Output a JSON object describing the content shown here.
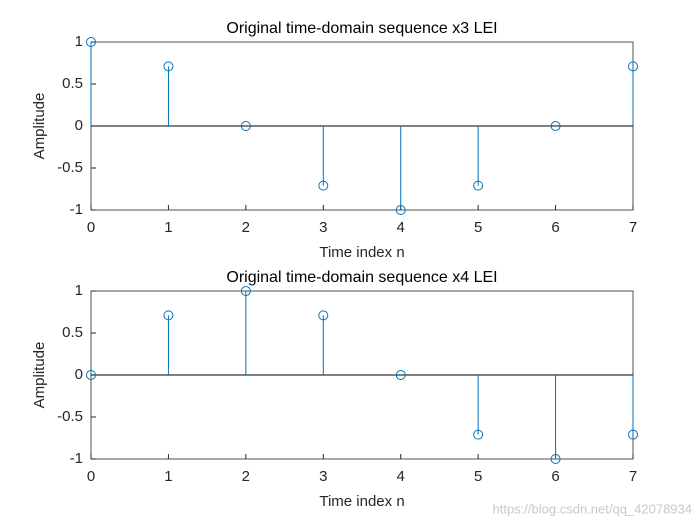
{
  "chart_data": [
    {
      "type": "stem",
      "title": "Original time-domain sequence x3 LEI",
      "xlabel": "Time index n",
      "ylabel": "Amplitude",
      "x": [
        0,
        1,
        2,
        3,
        4,
        5,
        6,
        7
      ],
      "values": [
        1,
        0.71,
        0,
        -0.71,
        -1,
        -0.71,
        0,
        0.71
      ],
      "color": "#0072bd",
      "xlim": [
        0,
        7
      ],
      "xticks": [
        0,
        1,
        2,
        3,
        4,
        5,
        6,
        7
      ],
      "ylim": [
        -1,
        1
      ],
      "yticks": [
        -1,
        -0.5,
        0,
        0.5,
        1
      ],
      "grid": false
    },
    {
      "type": "stem",
      "title": "Original time-domain sequence x4 LEI",
      "xlabel": "Time index n",
      "ylabel": "Amplitude",
      "x": [
        0,
        1,
        2,
        3,
        4,
        5,
        6,
        7
      ],
      "values": [
        0,
        0.71,
        1,
        0.71,
        0,
        -0.71,
        -1,
        -0.71
      ],
      "color": "#0072bd",
      "xlim": [
        0,
        7
      ],
      "xticks": [
        0,
        1,
        2,
        3,
        4,
        5,
        6,
        7
      ],
      "ylim": [
        -1,
        1
      ],
      "yticks": [
        -1,
        -0.5,
        0,
        0.5,
        1
      ],
      "grid": false
    }
  ],
  "watermark": "https://blog.csdn.net/qq_42078934"
}
